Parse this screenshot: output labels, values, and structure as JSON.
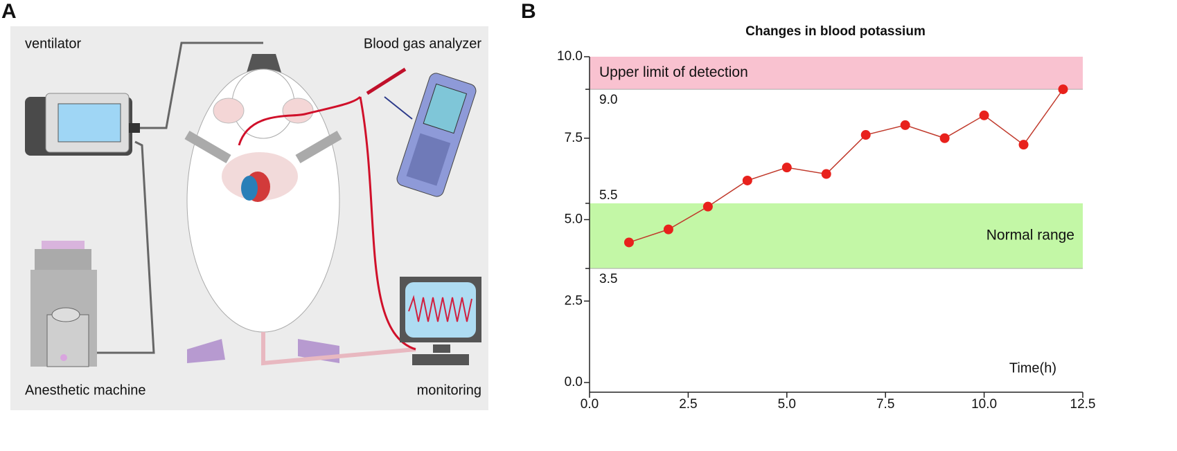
{
  "panel_a": {
    "label": "A",
    "texts": [
      "ventilator",
      "Blood gas analyzer",
      "Anesthetic machine",
      "monitoring"
    ]
  },
  "panel_b": {
    "label": "B"
  },
  "chart_data": {
    "type": "line",
    "title": "Changes in blood potassium",
    "xlabel": "Time(h)",
    "x": [
      1,
      2,
      3,
      4,
      5,
      6,
      7,
      8,
      9,
      10,
      11,
      12
    ],
    "series": [
      {
        "name": "Blood potassium",
        "color": "#e8211c",
        "line_color": "#c0392b",
        "values": [
          4.3,
          4.7,
          5.4,
          6.2,
          6.6,
          6.4,
          7.6,
          7.9,
          7.5,
          8.2,
          7.3,
          9.0
        ]
      }
    ],
    "xlim": [
      0,
      12.5
    ],
    "xticks": [
      {
        "value": 0,
        "label": "0.0"
      },
      {
        "value": 2.5,
        "label": "2.5"
      },
      {
        "value": 5,
        "label": "5.0"
      },
      {
        "value": 7.5,
        "label": "7.5"
      },
      {
        "value": 10,
        "label": "10.0"
      },
      {
        "value": 12.5,
        "label": "12.5"
      }
    ],
    "ylim": [
      0,
      10
    ],
    "yticks": [
      {
        "value": 0,
        "label": "0.0"
      },
      {
        "value": 2.5,
        "label": "2.5"
      },
      {
        "value": 5,
        "label": "5.0"
      },
      {
        "value": 7.5,
        "label": "7.5"
      },
      {
        "value": 10,
        "label": "10.0"
      }
    ],
    "bands": [
      {
        "range": [
          9,
          10
        ],
        "label": "Upper limit of detection",
        "color": "#f9c2d0",
        "label_side": "left",
        "edge_labels": [
          {
            "value": 9,
            "label": "9.0"
          }
        ]
      },
      {
        "range": [
          3.5,
          5.5
        ],
        "label": "Normal range",
        "color": "#c3f7a6",
        "label_side": "right",
        "edge_labels": [
          {
            "value": 5.5,
            "label": "5.5"
          },
          {
            "value": 3.5,
            "label": "3.5"
          }
        ]
      }
    ]
  }
}
